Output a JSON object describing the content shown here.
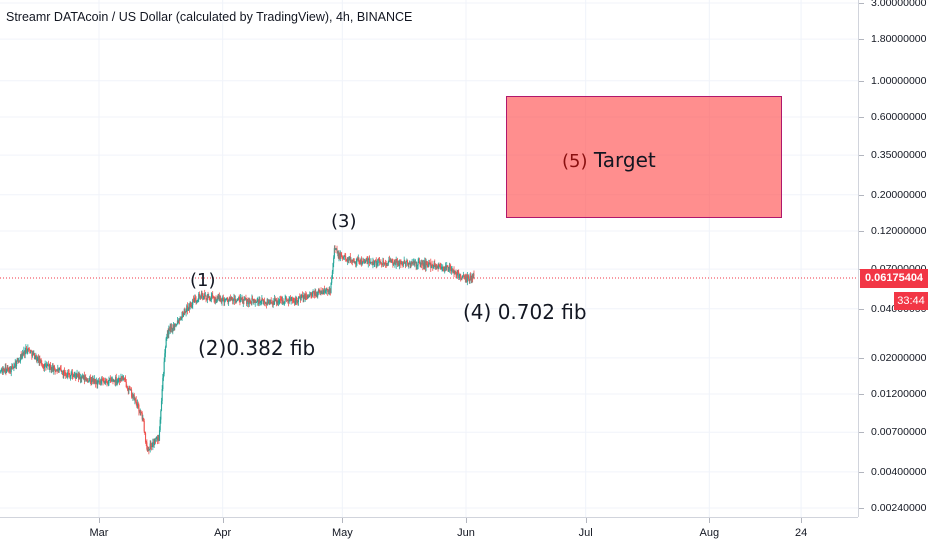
{
  "header": {
    "title": "Streamr DATAcoin / US Dollar (calculated by TradingView), 4h, BINANCE"
  },
  "price_badge": {
    "value": "0.06175404",
    "timer": "33:44",
    "color": "#f23645"
  },
  "annotations": {
    "wave1": "(1)",
    "wave2": "(2)0.382 fib",
    "wave3": "(3)",
    "wave4": "(4)  0.702 fib",
    "target_num": "(5)",
    "target_text": "Target"
  },
  "colors": {
    "up": "#26a69a",
    "down": "#ef5350",
    "target_fill": "#ff5252",
    "grid": "#f0f3fa"
  },
  "chart_data": {
    "type": "candlestick",
    "title": "Streamr DATAcoin / US Dollar (calculated by TradingView), 4h, BINANCE",
    "y_scale": "log",
    "ylim": [
      0.0021,
      3.2
    ],
    "y_ticks": [
      "3.00000000",
      "1.80000000",
      "1.00000000",
      "0.60000000",
      "0.35000000",
      "0.20000000",
      "0.12000000",
      "0.07000000",
      "0.04000000",
      "0.02000000",
      "0.01200000",
      "0.00700000",
      "0.00400000",
      "0.00240000"
    ],
    "x_ticks": [
      "Mar",
      "Apr",
      "May",
      "Jun",
      "Jul",
      "Aug",
      "24"
    ],
    "last_price": 0.06175404,
    "trend": {
      "dates": [
        "2020-02-01",
        "2020-02-08",
        "2020-02-12",
        "2020-02-16",
        "2020-02-22",
        "2020-03-01",
        "2020-03-07",
        "2020-03-10",
        "2020-03-12",
        "2020-03-13",
        "2020-03-16",
        "2020-03-17",
        "2020-03-18",
        "2020-03-20",
        "2020-03-23",
        "2020-03-26",
        "2020-03-30",
        "2020-04-05",
        "2020-04-12",
        "2020-04-20",
        "2020-04-26",
        "2020-04-28",
        "2020-04-29",
        "2020-04-30",
        "2020-05-03",
        "2020-05-06",
        "2020-05-12",
        "2020-05-18",
        "2020-05-24",
        "2020-05-28",
        "2020-06-01",
        "2020-06-03"
      ],
      "close": [
        0.016,
        0.017,
        0.023,
        0.018,
        0.016,
        0.014,
        0.015,
        0.011,
        0.0085,
        0.0055,
        0.0065,
        0.015,
        0.028,
        0.032,
        0.04,
        0.048,
        0.046,
        0.045,
        0.044,
        0.046,
        0.051,
        0.052,
        0.095,
        0.085,
        0.08,
        0.078,
        0.077,
        0.076,
        0.074,
        0.07,
        0.06,
        0.064
      ]
    },
    "annotations": [
      {
        "label": "(1)",
        "date": "2020-03-26",
        "price": 0.055
      },
      {
        "label": "(2) 0.382 fib",
        "date": "2020-03-21",
        "price": 0.03
      },
      {
        "label": "(3)",
        "date": "2020-04-30",
        "price": 0.105
      },
      {
        "label": "(4) 0.702 fib",
        "date": "2020-06-01",
        "price": 0.06
      },
      {
        "label": "(5) Target",
        "date_range": [
          "2020-06-12",
          "2020-08-22"
        ],
        "price_range": [
          0.15,
          0.85
        ]
      }
    ]
  }
}
